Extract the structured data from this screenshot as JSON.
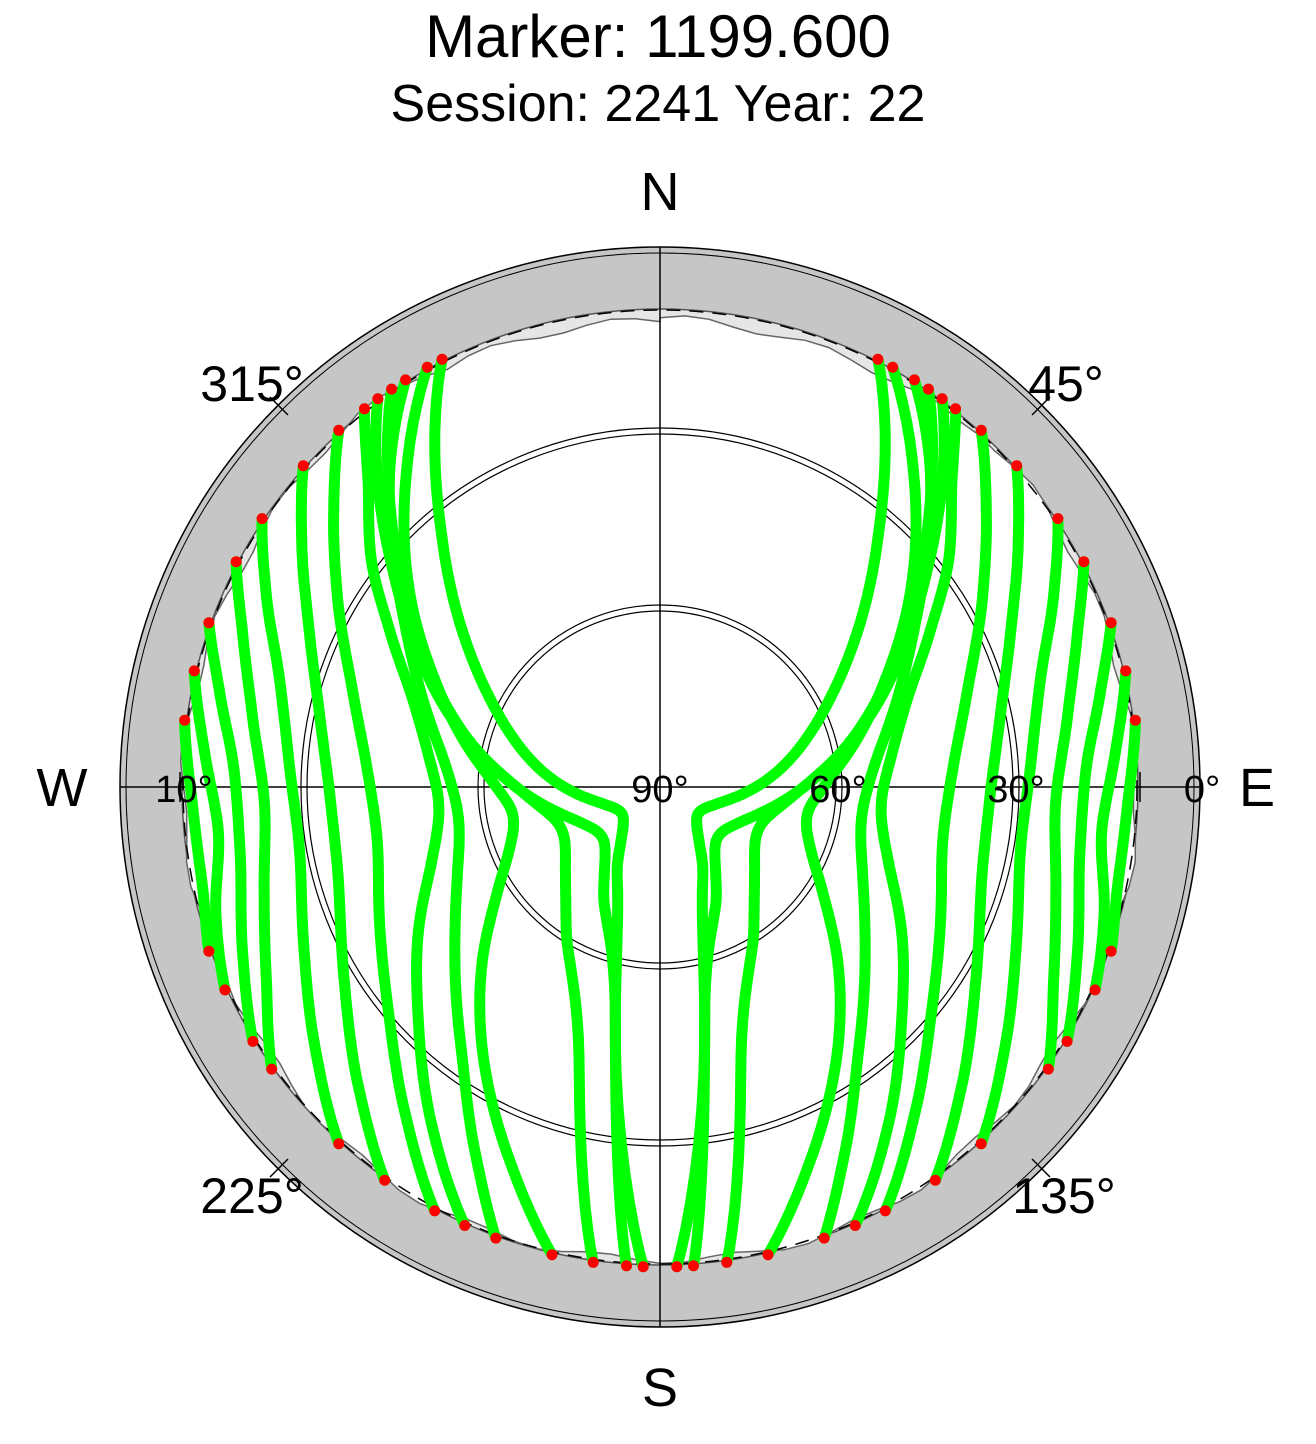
{
  "title": "Marker: 1199.600",
  "subtitle": "Session: 2241 Year: 22",
  "colors": {
    "ring": "#c6c6c6",
    "mask": "#e6e6e6",
    "tracks": "#00ff00",
    "track_ends": "#ff0000",
    "grid": "#000000"
  },
  "chart_data": {
    "type": "polar-skyplot",
    "cardinal_labels": {
      "north": "N",
      "east": "E",
      "south": "S",
      "west": "W"
    },
    "azimuth_labels": [
      "45°",
      "135°",
      "225°",
      "315°"
    ],
    "elevation_labels": [
      "0°",
      "30°",
      "60°",
      "90°",
      "10°"
    ],
    "elevation_rings": [
      30,
      60
    ],
    "mask_elevation_deg": 10,
    "azimuth_range": [
      0,
      360
    ],
    "elevation_range": [
      0,
      90
    ],
    "tracks": [
      {
        "az": [
          29,
          40,
          52,
          64,
          76,
          88,
          100,
          112,
          124,
          135,
          147,
          158,
          167
        ],
        "el": [
          10,
          24,
          37,
          48,
          56,
          62,
          65,
          63,
          57,
          48,
          36,
          23,
          10
        ]
      },
      {
        "az": [
          32,
          40,
          48,
          58,
          70,
          84,
          99,
          114,
          129,
          143,
          153,
          160
        ],
        "el": [
          10,
          20,
          30,
          40,
          48,
          54,
          56,
          53,
          46,
          35,
          22,
          10
        ]
      },
      {
        "az": [
          38,
          44,
          52,
          60,
          70,
          82,
          95,
          108,
          121,
          134,
          146,
          156
        ],
        "el": [
          10,
          20,
          29,
          38,
          46,
          51,
          53,
          50,
          43,
          34,
          22,
          10
        ]
      },
      {
        "az": [
          42,
          50,
          60,
          72,
          86,
          101,
          116,
          130,
          142,
          152
        ],
        "el": [
          10,
          19,
          28,
          36,
          41,
          42,
          38,
          31,
          21,
          10
        ]
      },
      {
        "az": [
          48,
          56,
          66,
          78,
          92,
          107,
          122,
          135,
          145
        ],
        "el": [
          10,
          18,
          26,
          32,
          35,
          34,
          28,
          19,
          10
        ]
      },
      {
        "az": [
          56,
          64,
          74,
          86,
          100,
          114,
          127,
          138
        ],
        "el": [
          10,
          17,
          24,
          28,
          29,
          25,
          18,
          10
        ]
      },
      {
        "az": [
          62,
          70,
          80,
          92,
          104,
          116,
          126
        ],
        "el": [
          10,
          16,
          21,
          24,
          22,
          17,
          10
        ]
      },
      {
        "az": [
          70,
          78,
          88,
          100,
          112,
          122
        ],
        "el": [
          10,
          15,
          19,
          19,
          15,
          10
        ]
      },
      {
        "az": [
          76,
          86,
          96,
          106,
          115
        ],
        "el": [
          10,
          14,
          16,
          13,
          10
        ]
      },
      {
        "az": [
          82,
          92,
          102,
          110
        ],
        "el": [
          10,
          12,
          12,
          10
        ]
      },
      {
        "az": [
          34,
          46,
          60,
          76,
          92,
          110,
          128,
          146,
          162,
          172
        ],
        "el": [
          10,
          28,
          44,
          57,
          67,
          72,
          70,
          62,
          46,
          10
        ]
      },
      {
        "az": [
          36,
          52,
          70,
          90,
          112,
          134,
          152,
          168,
          176
        ],
        "el": [
          10,
          34,
          52,
          66,
          75,
          77,
          70,
          54,
          10
        ]
      },
      {
        "az": [
          27,
          42,
          60,
          82,
          106,
          130,
          150,
          166,
          178
        ],
        "el": [
          10,
          36,
          56,
          70,
          80,
          82,
          76,
          60,
          10
        ]
      },
      {
        "az": [
          331,
          320,
          308,
          296,
          284,
          272,
          260,
          248,
          236,
          225,
          213,
          202,
          193
        ],
        "el": [
          10,
          24,
          37,
          48,
          56,
          62,
          65,
          63,
          57,
          48,
          36,
          23,
          10
        ]
      },
      {
        "az": [
          328,
          320,
          312,
          302,
          290,
          276,
          261,
          246,
          231,
          217,
          207,
          200
        ],
        "el": [
          10,
          20,
          30,
          40,
          48,
          54,
          56,
          53,
          46,
          35,
          22,
          10
        ]
      },
      {
        "az": [
          322,
          316,
          308,
          300,
          290,
          278,
          265,
          252,
          239,
          226,
          214,
          204
        ],
        "el": [
          10,
          20,
          29,
          38,
          46,
          51,
          53,
          50,
          43,
          34,
          22,
          10
        ]
      },
      {
        "az": [
          318,
          310,
          300,
          288,
          274,
          259,
          244,
          230,
          218,
          208
        ],
        "el": [
          10,
          19,
          28,
          36,
          41,
          42,
          38,
          31,
          21,
          10
        ]
      },
      {
        "az": [
          312,
          304,
          294,
          282,
          268,
          253,
          238,
          225,
          215
        ],
        "el": [
          10,
          18,
          26,
          32,
          35,
          34,
          28,
          19,
          10
        ]
      },
      {
        "az": [
          304,
          296,
          286,
          274,
          260,
          246,
          233,
          222
        ],
        "el": [
          10,
          17,
          24,
          28,
          29,
          25,
          18,
          10
        ]
      },
      {
        "az": [
          298,
          290,
          280,
          268,
          256,
          244,
          234
        ],
        "el": [
          10,
          16,
          21,
          24,
          22,
          17,
          10
        ]
      },
      {
        "az": [
          290,
          282,
          272,
          260,
          248,
          238
        ],
        "el": [
          10,
          15,
          19,
          19,
          15,
          10
        ]
      },
      {
        "az": [
          284,
          274,
          264,
          254,
          245
        ],
        "el": [
          10,
          14,
          16,
          13,
          10
        ]
      },
      {
        "az": [
          278,
          268,
          258,
          250
        ],
        "el": [
          10,
          12,
          12,
          10
        ]
      },
      {
        "az": [
          326,
          314,
          300,
          284,
          268,
          250,
          232,
          214,
          198,
          188
        ],
        "el": [
          10,
          28,
          44,
          57,
          67,
          72,
          70,
          62,
          46,
          10
        ]
      },
      {
        "az": [
          324,
          308,
          290,
          270,
          248,
          226,
          208,
          192,
          184
        ],
        "el": [
          10,
          34,
          52,
          66,
          75,
          77,
          70,
          54,
          10
        ]
      },
      {
        "az": [
          333,
          318,
          300,
          278,
          254,
          230,
          210,
          194,
          182
        ],
        "el": [
          10,
          36,
          56,
          70,
          80,
          82,
          76,
          60,
          10
        ]
      }
    ]
  }
}
